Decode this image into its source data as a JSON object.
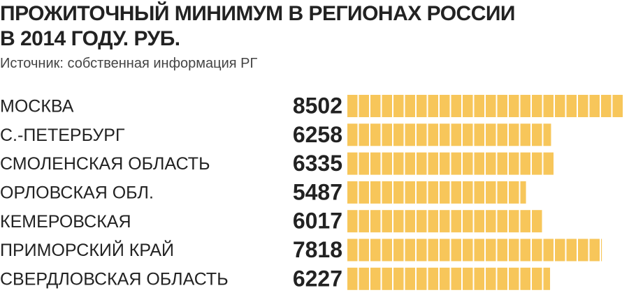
{
  "chart_data": {
    "type": "bar",
    "orientation": "horizontal",
    "title": "ПРОЖИТОЧНЫЙ МИНИМУМ В РЕГИОНАХ РОССИИ\nВ 2014 ГОДУ. РУБ.",
    "subtitle": "Источник: собственная информация РГ",
    "categories": [
      "МОСКВА",
      "С.-ПЕТЕРБУРГ",
      "СМОЛЕНСКАЯ ОБЛАСТЬ",
      "ОРЛОВСКАЯ ОБЛ.",
      "КЕМЕРОВСКАЯ",
      "ПРИМОРСКИЙ КРАЙ",
      "СВЕРДЛОВСКАЯ ОБЛАСТЬ"
    ],
    "values": [
      8502,
      6258,
      6335,
      5487,
      6017,
      7818,
      6227
    ],
    "color": "#f7c65a"
  }
}
